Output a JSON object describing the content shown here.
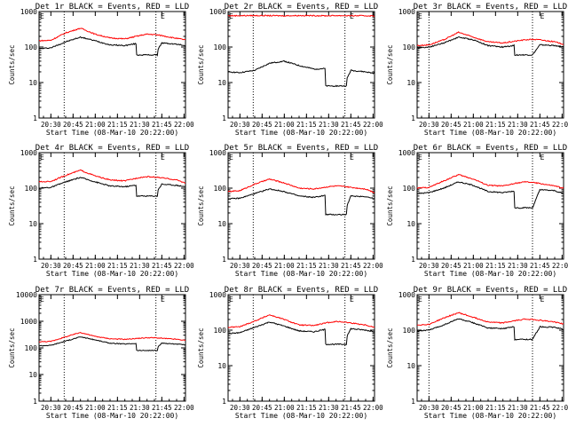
{
  "figure": {
    "xlabel_time_ticks": [
      "20:30",
      "20:45",
      "21:00",
      "21:15",
      "21:30",
      "21:45",
      "22:00"
    ],
    "x_axis_title": "Start Time (08-Mar-10 20:22:00)",
    "y_axis_title": "Counts/sec",
    "event_marker_label": "E",
    "colors": {
      "events": "#000000",
      "lld": "#ff0000",
      "frame": "#000000",
      "background": "#ffffff"
    }
  },
  "chart_data": [
    {
      "type": "line",
      "title": "Det 1r BLACK = Events, RED = LLD",
      "x": [
        "20:22",
        "20:30",
        "20:40",
        "20:50",
        "21:00",
        "21:10",
        "21:20",
        "21:30",
        "21:35",
        "21:40",
        "21:45",
        "21:55",
        "22:01"
      ],
      "log_y": true,
      "ylim": [
        1,
        1000
      ],
      "y_ticks": [
        "1",
        "10",
        "100",
        "1000"
      ],
      "vlines": [
        "20:39",
        "21:41"
      ],
      "marker": "21:46",
      "dip": [
        "21:28",
        "21:42"
      ],
      "series": [
        {
          "name": "Events",
          "values": [
            90,
            95,
            140,
            190,
            150,
            115,
            110,
            130,
            60,
            60,
            130,
            120,
            110
          ]
        },
        {
          "name": "LLD",
          "values": [
            150,
            155,
            250,
            340,
            230,
            180,
            170,
            210,
            230,
            225,
            210,
            175,
            160
          ]
        }
      ]
    },
    {
      "type": "line",
      "title": "Det 2r BLACK = Events, RED = LLD",
      "x": [
        "20:22",
        "20:30",
        "20:40",
        "20:50",
        "21:00",
        "21:10",
        "21:20",
        "21:30",
        "21:35",
        "21:40",
        "21:45",
        "21:55",
        "22:01"
      ],
      "log_y": true,
      "ylim": [
        1,
        1000
      ],
      "y_ticks": [
        "1",
        "10",
        "100",
        "1000"
      ],
      "vlines": [
        "20:39",
        "21:41"
      ],
      "marker": "21:46",
      "dip": [
        "21:28",
        "21:42"
      ],
      "series": [
        {
          "name": "Events",
          "values": [
            20,
            19,
            22,
            35,
            40,
            30,
            24,
            25,
            8,
            8,
            22,
            20,
            18
          ]
        },
        {
          "name": "LLD",
          "values": [
            760,
            765,
            770,
            765,
            760,
            770,
            765,
            760,
            770,
            765,
            760,
            760,
            750
          ]
        }
      ]
    },
    {
      "type": "line",
      "title": "Det 3r BLACK = Events, RED = LLD",
      "x": [
        "20:22",
        "20:30",
        "20:40",
        "20:50",
        "21:00",
        "21:10",
        "21:20",
        "21:30",
        "21:35",
        "21:40",
        "21:45",
        "21:55",
        "22:01"
      ],
      "log_y": true,
      "ylim": [
        1,
        1000
      ],
      "y_ticks": [
        "1",
        "10",
        "100",
        "1000"
      ],
      "vlines": [
        "20:30",
        "21:40"
      ],
      "marker": "21:47",
      "dip": [
        "21:28",
        "21:40"
      ],
      "series": [
        {
          "name": "Events",
          "values": [
            95,
            100,
            130,
            190,
            160,
            110,
            100,
            115,
            60,
            60,
            115,
            110,
            100
          ]
        },
        {
          "name": "LLD",
          "values": [
            110,
            115,
            160,
            260,
            190,
            140,
            130,
            150,
            160,
            165,
            160,
            140,
            120
          ]
        }
      ]
    },
    {
      "type": "line",
      "title": "Det 4r BLACK = Events, RED = LLD",
      "x": [
        "20:22",
        "20:30",
        "20:40",
        "20:50",
        "21:00",
        "21:10",
        "21:20",
        "21:30",
        "21:35",
        "21:40",
        "21:45",
        "21:55",
        "22:01"
      ],
      "log_y": true,
      "ylim": [
        1,
        1000
      ],
      "y_ticks": [
        "1",
        "10",
        "100",
        "1000"
      ],
      "vlines": [
        "20:39",
        "21:41"
      ],
      "marker": "21:46",
      "dip": [
        "21:28",
        "21:42"
      ],
      "series": [
        {
          "name": "Events",
          "values": [
            100,
            105,
            150,
            200,
            150,
            115,
            110,
            125,
            60,
            62,
            130,
            120,
            110
          ]
        },
        {
          "name": "LLD",
          "values": [
            150,
            155,
            230,
            320,
            220,
            170,
            160,
            200,
            210,
            205,
            195,
            170,
            140
          ]
        }
      ]
    },
    {
      "type": "line",
      "title": "Det 5r BLACK = Events, RED = LLD",
      "x": [
        "20:22",
        "20:30",
        "20:40",
        "20:50",
        "21:00",
        "21:10",
        "21:20",
        "21:30",
        "21:35",
        "21:40",
        "21:45",
        "21:55",
        "22:01"
      ],
      "log_y": true,
      "ylim": [
        1,
        1000
      ],
      "y_ticks": [
        "1",
        "10",
        "100",
        "1000"
      ],
      "vlines": [
        "20:39",
        "21:41"
      ],
      "marker": "21:46",
      "dip": [
        "21:28",
        "21:42"
      ],
      "series": [
        {
          "name": "Events",
          "values": [
            50,
            52,
            70,
            95,
            80,
            60,
            55,
            65,
            18,
            18,
            60,
            58,
            50
          ]
        },
        {
          "name": "LLD",
          "values": [
            80,
            85,
            130,
            180,
            140,
            100,
            95,
            110,
            115,
            112,
            105,
            95,
            75
          ]
        }
      ]
    },
    {
      "type": "line",
      "title": "Det 6r BLACK = Events, RED = LLD",
      "x": [
        "20:22",
        "20:30",
        "20:40",
        "20:50",
        "21:00",
        "21:10",
        "21:20",
        "21:30",
        "21:35",
        "21:40",
        "21:45",
        "21:55",
        "22:01"
      ],
      "log_y": true,
      "ylim": [
        1,
        1000
      ],
      "y_ticks": [
        "1",
        "10",
        "100",
        "1000"
      ],
      "vlines": [
        "20:30",
        "21:40"
      ],
      "marker": "21:47",
      "dip": [
        "21:28",
        "21:40"
      ],
      "series": [
        {
          "name": "Events",
          "values": [
            70,
            75,
            100,
            150,
            120,
            80,
            75,
            85,
            28,
            28,
            90,
            85,
            70
          ]
        },
        {
          "name": "LLD",
          "values": [
            100,
            105,
            160,
            240,
            180,
            120,
            115,
            140,
            150,
            145,
            135,
            115,
            100
          ]
        }
      ]
    },
    {
      "type": "line",
      "title": "Det 7r BLACK = Events, RED = LLD",
      "x": [
        "20:22",
        "20:30",
        "20:40",
        "20:50",
        "21:00",
        "21:10",
        "21:20",
        "21:30",
        "21:35",
        "21:40",
        "21:45",
        "21:55",
        "22:01"
      ],
      "log_y": true,
      "ylim": [
        1,
        10000
      ],
      "y_ticks": [
        "1",
        "10",
        "100",
        "1000",
        "10000"
      ],
      "vlines": [
        "20:39",
        "21:41"
      ],
      "marker": "21:46",
      "dip": [
        "21:28",
        "21:42"
      ],
      "series": [
        {
          "name": "Events",
          "values": [
            120,
            125,
            180,
            260,
            200,
            150,
            140,
            150,
            80,
            80,
            150,
            140,
            130
          ]
        },
        {
          "name": "LLD",
          "values": [
            170,
            175,
            260,
            380,
            270,
            220,
            210,
            230,
            240,
            240,
            230,
            210,
            190
          ]
        }
      ]
    },
    {
      "type": "line",
      "title": "Det 8r BLACK = Events, RED = LLD",
      "x": [
        "20:22",
        "20:30",
        "20:40",
        "20:50",
        "21:00",
        "21:10",
        "21:20",
        "21:30",
        "21:35",
        "21:40",
        "21:45",
        "21:55",
        "22:01"
      ],
      "log_y": true,
      "ylim": [
        1,
        1000
      ],
      "y_ticks": [
        "1",
        "10",
        "100",
        "1000"
      ],
      "vlines": [
        "20:39",
        "21:41"
      ],
      "marker": "21:46",
      "dip": [
        "21:28",
        "21:42"
      ],
      "series": [
        {
          "name": "Events",
          "values": [
            80,
            85,
            120,
            170,
            130,
            95,
            90,
            110,
            40,
            42,
            110,
            100,
            90
          ]
        },
        {
          "name": "LLD",
          "values": [
            120,
            125,
            180,
            270,
            200,
            140,
            135,
            165,
            175,
            170,
            160,
            140,
            120
          ]
        }
      ]
    },
    {
      "type": "line",
      "title": "Det 9r BLACK = Events, RED = LLD",
      "x": [
        "20:22",
        "20:30",
        "20:40",
        "20:50",
        "21:00",
        "21:10",
        "21:20",
        "21:30",
        "21:35",
        "21:40",
        "21:45",
        "21:55",
        "22:01"
      ],
      "log_y": true,
      "ylim": [
        1,
        1000
      ],
      "y_ticks": [
        "1",
        "10",
        "100",
        "1000"
      ],
      "vlines": [
        "20:30",
        "21:40"
      ],
      "marker": "21:47",
      "dip": [
        "21:28",
        "21:40"
      ],
      "series": [
        {
          "name": "Events",
          "values": [
            95,
            100,
            140,
            210,
            160,
            115,
            110,
            130,
            55,
            55,
            125,
            120,
            105
          ]
        },
        {
          "name": "LLD",
          "values": [
            140,
            145,
            220,
            310,
            230,
            170,
            160,
            190,
            205,
            200,
            190,
            170,
            150
          ]
        }
      ]
    }
  ]
}
